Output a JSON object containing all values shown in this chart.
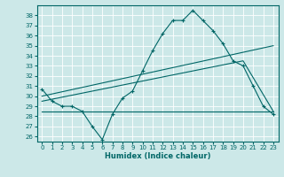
{
  "xlabel": "Humidex (Indice chaleur)",
  "bg_color": "#cce8e8",
  "line_color": "#006666",
  "xlim": [
    -0.5,
    23.5
  ],
  "ylim": [
    25.5,
    39.0
  ],
  "xticks": [
    0,
    1,
    2,
    3,
    4,
    5,
    6,
    7,
    8,
    9,
    10,
    11,
    12,
    13,
    14,
    15,
    16,
    17,
    18,
    19,
    20,
    21,
    22,
    23
  ],
  "yticks": [
    26,
    27,
    28,
    29,
    30,
    31,
    32,
    33,
    34,
    35,
    36,
    37,
    38
  ],
  "series1_x": [
    0,
    1,
    2,
    3,
    4,
    5,
    6,
    7,
    8,
    9,
    10,
    11,
    12,
    13,
    14,
    15,
    16,
    17,
    18,
    19,
    20,
    21,
    22,
    23
  ],
  "series1_y": [
    30.7,
    29.5,
    29.0,
    29.0,
    28.5,
    27.0,
    25.7,
    28.2,
    29.8,
    30.5,
    32.5,
    34.5,
    36.2,
    37.5,
    37.5,
    38.5,
    37.5,
    36.5,
    35.2,
    33.5,
    33.0,
    31.0,
    29.0,
    28.2
  ],
  "series2_x": [
    0,
    20,
    23
  ],
  "series2_y": [
    29.5,
    33.5,
    28.5
  ],
  "series3_x": [
    0,
    23
  ],
  "series3_y": [
    28.5,
    28.5
  ],
  "series4_x": [
    0,
    23
  ],
  "series4_y": [
    30.0,
    35.0
  ]
}
